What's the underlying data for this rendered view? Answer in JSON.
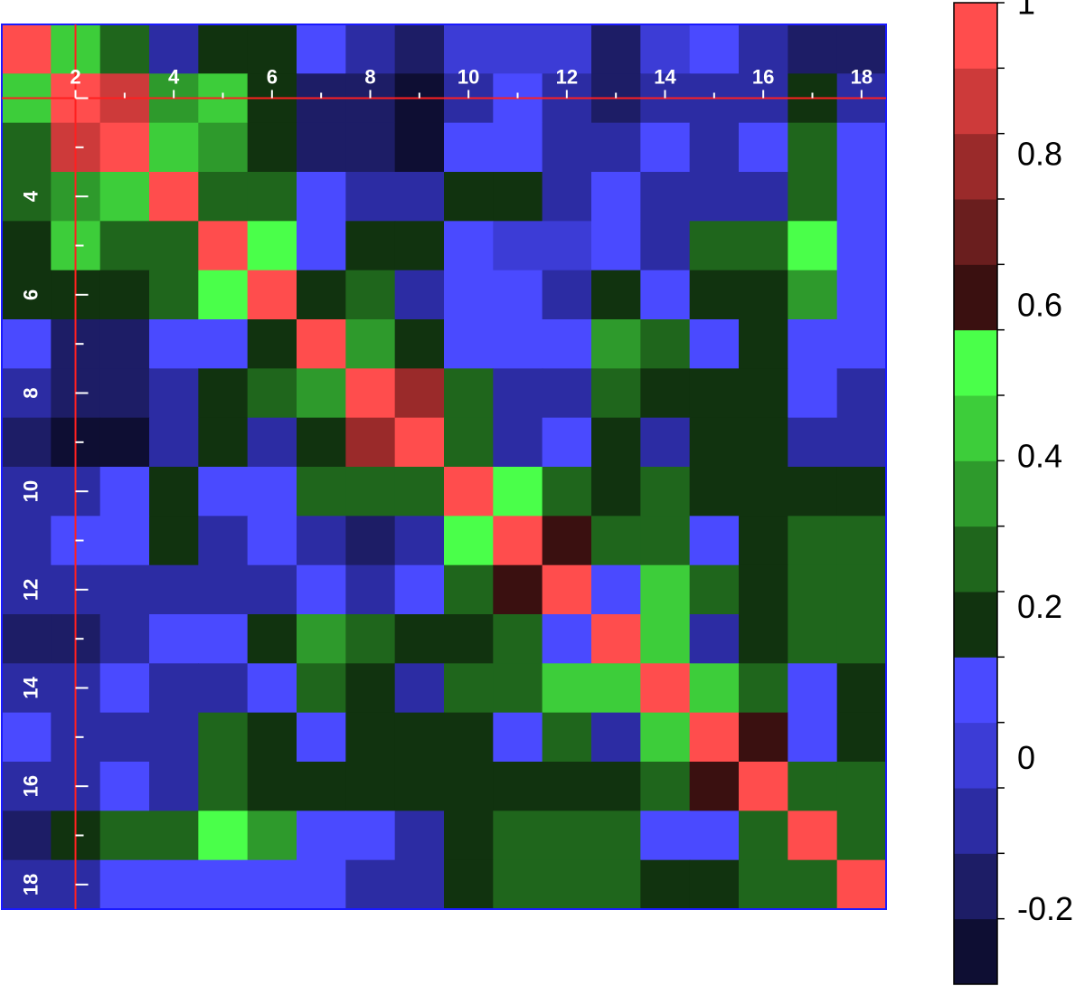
{
  "chart_data": {
    "type": "heatmap",
    "rows": 18,
    "cols": 18,
    "x_tick_labels": [
      "2",
      "4",
      "6",
      "8",
      "10",
      "12",
      "14",
      "16",
      "18"
    ],
    "y_tick_labels": [
      "4",
      "6",
      "8",
      "10",
      "12",
      "14",
      "16",
      "18"
    ],
    "colorbar": {
      "range": [
        -0.3,
        1.0
      ],
      "levels": 13,
      "tick_values": [
        -0.2,
        0,
        0.2,
        0.4,
        0.6,
        0.8,
        1
      ],
      "tick_labels": [
        "-0.2",
        "0",
        "0.2",
        "0.4",
        "0.6",
        "0.8",
        "1"
      ],
      "colors": [
        "#0e0e33",
        "#1d1d66",
        "#2c2ca3",
        "#3c3cd6",
        "#4a4aff",
        "#11330f",
        "#1f661c",
        "#2e9a2c",
        "#3dcd3a",
        "#4aff4a",
        "#3a1010",
        "#6a1e1e",
        "#9a2a2a",
        "#cd3a3a",
        "#ff4d4d"
      ]
    },
    "values": [
      [
        1.0,
        0.45,
        0.25,
        -0.05,
        0.15,
        0.15,
        0.05,
        -0.05,
        -0.15,
        0.0,
        0.0,
        0.0,
        -0.2,
        0.0,
        0.05,
        -0.1,
        -0.2,
        -0.15
      ],
      [
        0.45,
        1.0,
        0.85,
        0.35,
        0.4,
        0.15,
        -0.2,
        -0.15,
        -0.3,
        -0.05,
        0.05,
        -0.05,
        -0.2,
        -0.05,
        -0.1,
        -0.05,
        0.15,
        -0.1
      ],
      [
        0.25,
        0.85,
        1.0,
        0.4,
        0.35,
        0.15,
        -0.2,
        -0.2,
        -0.3,
        0.05,
        0.05,
        -0.1,
        -0.1,
        0.05,
        -0.1,
        0.05,
        0.25,
        0.05
      ],
      [
        0.3,
        0.35,
        0.4,
        1.0,
        0.3,
        0.3,
        0.05,
        -0.05,
        -0.1,
        0.15,
        0.15,
        -0.1,
        0.05,
        -0.1,
        -0.1,
        -0.1,
        0.25,
        0.05
      ],
      [
        0.15,
        0.4,
        0.3,
        0.3,
        1.0,
        0.5,
        0.05,
        0.15,
        0.15,
        0.05,
        0.0,
        0.0,
        0.05,
        -0.1,
        0.25,
        0.25,
        0.5,
        0.05
      ],
      [
        0.15,
        0.15,
        0.15,
        0.3,
        0.5,
        1.0,
        0.15,
        0.25,
        -0.05,
        0.05,
        0.05,
        -0.1,
        0.15,
        0.05,
        0.15,
        0.15,
        0.35,
        0.05
      ],
      [
        0.05,
        -0.2,
        -0.2,
        0.05,
        0.05,
        0.15,
        1.0,
        0.35,
        0.15,
        0.05,
        0.05,
        0.05,
        0.35,
        0.25,
        0.05,
        0.15,
        0.05,
        0.05
      ],
      [
        -0.05,
        -0.15,
        -0.2,
        -0.05,
        0.15,
        0.25,
        0.35,
        1.0,
        0.75,
        0.3,
        -0.1,
        -0.05,
        0.25,
        0.15,
        0.15,
        0.15,
        0.05,
        -0.05
      ],
      [
        -0.15,
        -0.3,
        -0.3,
        -0.1,
        0.15,
        -0.05,
        0.15,
        0.75,
        1.0,
        0.3,
        -0.1,
        0.05,
        0.15,
        -0.05,
        0.15,
        0.15,
        -0.05,
        -0.05
      ],
      [
        -0.05,
        -0.05,
        0.05,
        0.15,
        0.05,
        0.05,
        0.3,
        0.3,
        0.3,
        1.0,
        0.5,
        0.3,
        0.15,
        0.3,
        0.15,
        0.15,
        0.15,
        0.15
      ],
      [
        -0.05,
        0.05,
        0.05,
        0.15,
        -0.05,
        0.05,
        -0.1,
        -0.15,
        -0.1,
        0.5,
        1.0,
        0.65,
        0.25,
        0.3,
        0.05,
        0.15,
        0.25,
        0.25
      ],
      [
        -0.05,
        -0.05,
        -0.1,
        -0.1,
        -0.05,
        -0.1,
        0.05,
        -0.05,
        0.05,
        0.3,
        0.65,
        1.0,
        0.05,
        0.4,
        0.25,
        0.15,
        0.25,
        0.25
      ],
      [
        -0.2,
        -0.2,
        -0.1,
        0.05,
        0.05,
        0.15,
        0.35,
        0.25,
        0.15,
        0.15,
        0.25,
        0.05,
        1.0,
        0.4,
        -0.05,
        0.15,
        0.25,
        0.25
      ],
      [
        -0.05,
        -0.05,
        0.05,
        -0.1,
        -0.1,
        0.05,
        0.25,
        0.15,
        -0.05,
        0.3,
        0.3,
        0.4,
        0.4,
        1.0,
        0.4,
        0.3,
        0.05,
        0.15
      ],
      [
        0.05,
        -0.1,
        -0.1,
        -0.1,
        0.25,
        0.15,
        0.05,
        0.15,
        0.15,
        0.15,
        0.05,
        0.25,
        -0.05,
        0.4,
        1.0,
        0.65,
        0.05,
        0.15
      ],
      [
        -0.05,
        -0.05,
        0.05,
        -0.1,
        0.25,
        0.15,
        0.15,
        0.15,
        0.15,
        0.15,
        0.15,
        0.15,
        0.15,
        0.3,
        0.65,
        1.0,
        0.25,
        0.25
      ],
      [
        -0.2,
        0.15,
        0.25,
        0.25,
        0.5,
        0.35,
        0.05,
        0.05,
        -0.05,
        0.15,
        0.25,
        0.25,
        0.25,
        0.05,
        0.05,
        0.25,
        1.0,
        0.3
      ],
      [
        -0.1,
        -0.1,
        0.05,
        0.05,
        0.05,
        0.05,
        0.05,
        -0.05,
        -0.05,
        0.15,
        0.25,
        0.25,
        0.25,
        0.15,
        0.15,
        0.25,
        0.3,
        1.0
      ]
    ]
  }
}
